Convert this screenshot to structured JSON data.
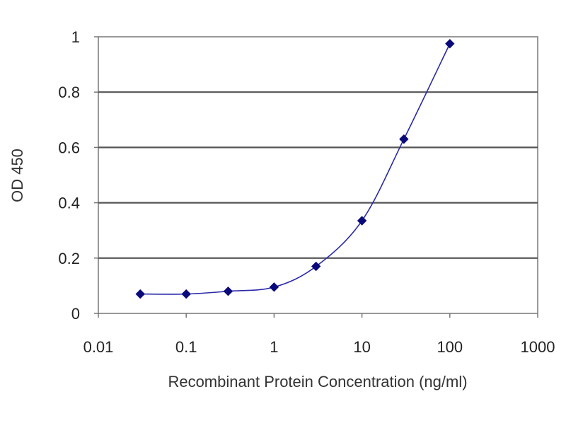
{
  "chart_data": {
    "type": "line",
    "title": "",
    "xlabel": "Recombinant Protein Concentration (ng/ml)",
    "ylabel": "OD 450",
    "x_scale": "log",
    "xlim": [
      0.01,
      1000
    ],
    "ylim": [
      0,
      1
    ],
    "x_ticks": [
      "0.01",
      "0.1",
      "1",
      "10",
      "100",
      "1000"
    ],
    "y_ticks": [
      "0",
      "0.2",
      "0.4",
      "0.6",
      "0.8",
      "1"
    ],
    "grid": {
      "horizontal": true,
      "vertical": false
    },
    "series": [
      {
        "x": [
          0.03,
          0.1,
          0.3,
          1,
          3,
          10,
          30,
          100
        ],
        "y": [
          0.07,
          0.07,
          0.08,
          0.095,
          0.17,
          0.335,
          0.63,
          0.975
        ],
        "color": "#0a0a7a",
        "marker": "diamond"
      }
    ],
    "colors": {
      "plot_background": "#ffffff",
      "gridline": "#555555",
      "axis": "#777777"
    }
  }
}
